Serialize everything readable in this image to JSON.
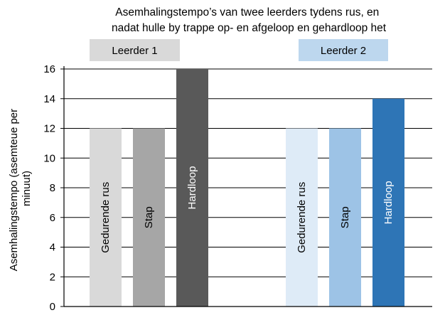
{
  "chart_data": {
    "type": "bar",
    "title": "Asemhalingstempo’s van twee leerders tydens rus, en nadat hulle by trappe op- en afgeloop en gehardloop het",
    "title_lines": [
      "Asemhalingstempo’s van twee leerders tydens rus, en",
      "nadat hulle by trappe op- en afgeloop en gehardloop het"
    ],
    "ylabel": "Asemhalingstempo (asemteue per minuut)",
    "ylabel_lines": [
      "Asemhalingstempo (asemteue per",
      "minuut)"
    ],
    "xlabel": "",
    "ylim": [
      0,
      16
    ],
    "yticks": [
      0,
      2,
      4,
      6,
      8,
      10,
      12,
      14,
      16
    ],
    "grid": true,
    "groups": [
      {
        "name": "Leerder 1",
        "legend_color": "#d9d9d9",
        "bars": [
          {
            "label": "Gedurende rus",
            "value": 12,
            "color": "#d9d9d9",
            "text_color": "#000000"
          },
          {
            "label": "Stap",
            "value": 12,
            "color": "#a6a6a6",
            "text_color": "#000000"
          },
          {
            "label": "Hardloop",
            "value": 16,
            "color": "#595959",
            "text_color": "#ffffff"
          }
        ]
      },
      {
        "name": "Leerder 2",
        "legend_color": "#bdd7ee",
        "bars": [
          {
            "label": "Gedurende rus",
            "value": 12,
            "color": "#deebf7",
            "text_color": "#000000"
          },
          {
            "label": "Stap",
            "value": 12,
            "color": "#9dc3e6",
            "text_color": "#000000"
          },
          {
            "label": "Hardloop",
            "value": 14,
            "color": "#2e75b6",
            "text_color": "#ffffff"
          }
        ]
      }
    ]
  }
}
